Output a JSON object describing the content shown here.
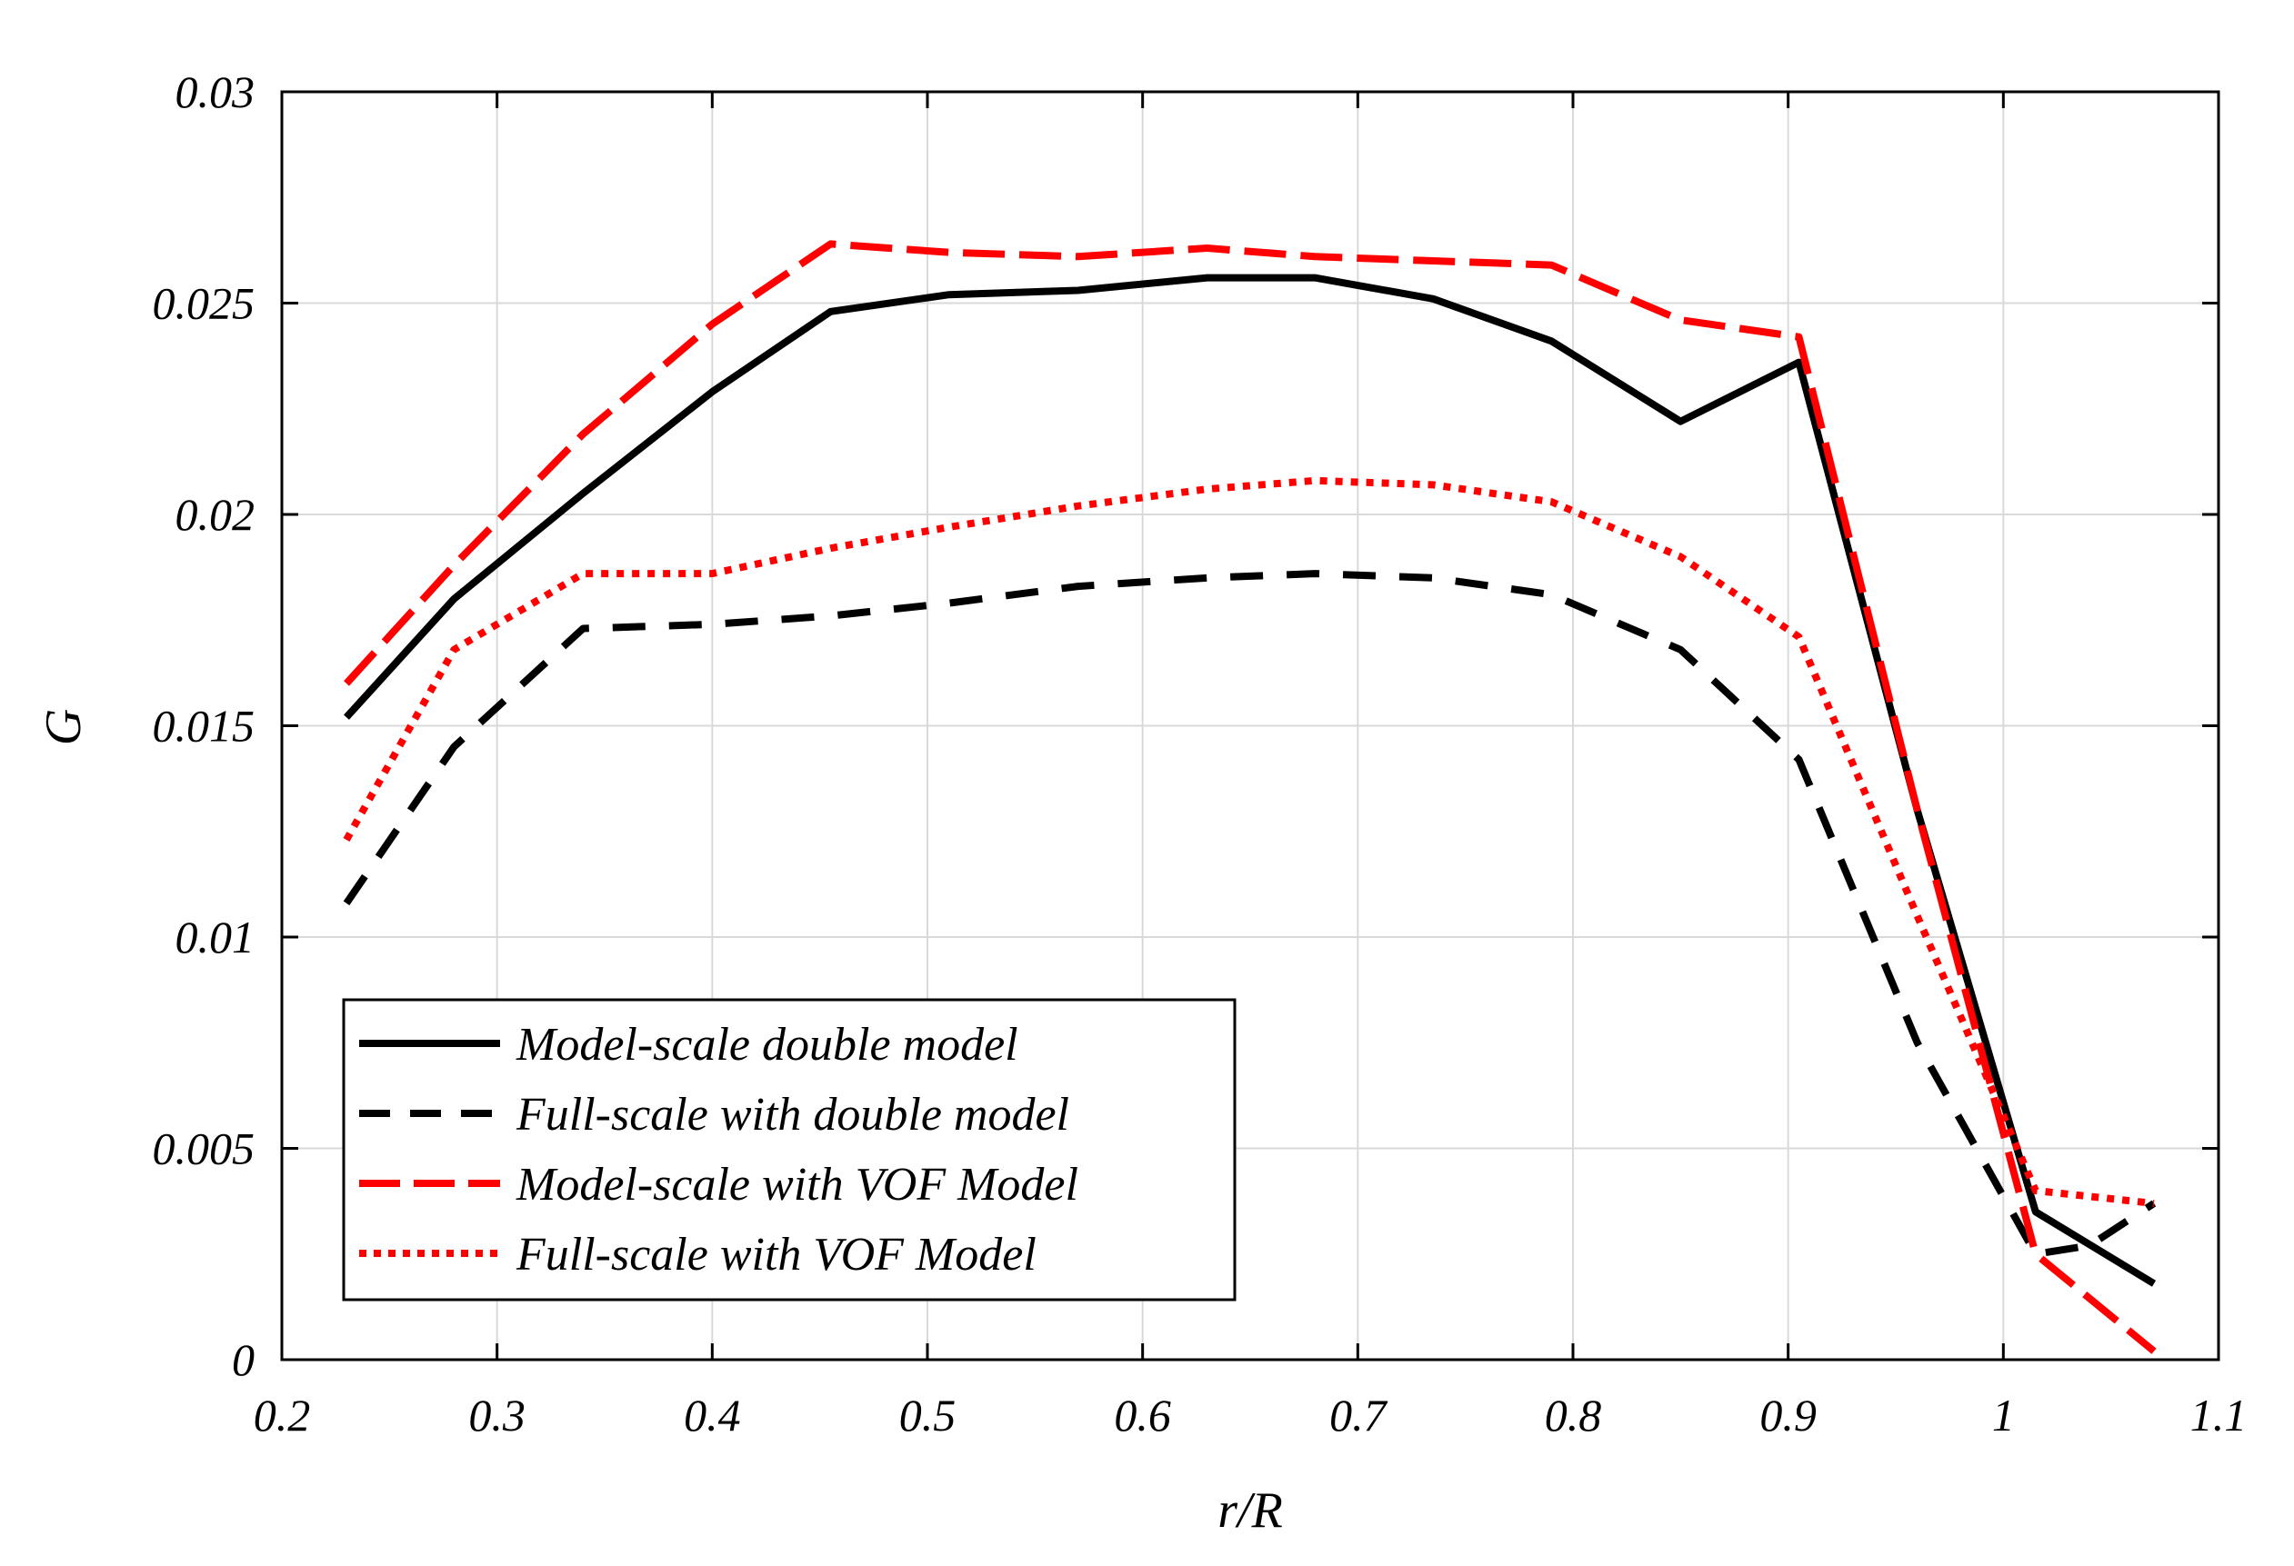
{
  "chart_data": {
    "type": "line",
    "title": "",
    "xlabel": "r/R",
    "ylabel": "G",
    "xlim": [
      0.2,
      1.1
    ],
    "ylim": [
      0,
      0.03
    ],
    "grid": true,
    "x_ticks": [
      0.2,
      0.3,
      0.4,
      0.5,
      0.6,
      0.7,
      0.8,
      0.9,
      1,
      1.1
    ],
    "x_tick_labels": [
      "0.2",
      "0.3",
      "0.4",
      "0.5",
      "0.6",
      "0.7",
      "0.8",
      "0.9",
      "1",
      "1.1"
    ],
    "y_ticks": [
      0,
      0.005,
      0.01,
      0.015,
      0.02,
      0.025,
      0.03
    ],
    "y_tick_labels": [
      "0",
      "0.005",
      "0.01",
      "0.015",
      "0.02",
      "0.025",
      "0.03"
    ],
    "legend_position": "bottom-left",
    "series": [
      {
        "name": "Model-scale double model",
        "color": "#000000",
        "style": "solid",
        "x": [
          0.23,
          0.28,
          0.34,
          0.4,
          0.455,
          0.51,
          0.57,
          0.63,
          0.68,
          0.735,
          0.79,
          0.85,
          0.905,
          0.96,
          1.015,
          1.07
        ],
        "y": [
          0.0152,
          0.018,
          0.0205,
          0.0229,
          0.0248,
          0.0252,
          0.0253,
          0.0256,
          0.0256,
          0.0251,
          0.0241,
          0.0222,
          0.0236,
          0.013,
          0.0035,
          0.0018
        ]
      },
      {
        "name": "Full-scale with double model",
        "color": "#000000",
        "style": "dashed",
        "x": [
          0.23,
          0.28,
          0.34,
          0.4,
          0.455,
          0.51,
          0.57,
          0.63,
          0.68,
          0.735,
          0.79,
          0.85,
          0.905,
          0.96,
          1.015,
          1.04,
          1.07
        ],
        "y": [
          0.0108,
          0.0145,
          0.0173,
          0.0174,
          0.0176,
          0.0179,
          0.0183,
          0.0185,
          0.0186,
          0.0185,
          0.0181,
          0.0168,
          0.0142,
          0.0075,
          0.0025,
          0.0027,
          0.0037
        ]
      },
      {
        "name": "Model-scale with VOF Model",
        "color": "#ff0000",
        "style": "long-dashed",
        "x": [
          0.23,
          0.28,
          0.34,
          0.4,
          0.455,
          0.51,
          0.57,
          0.63,
          0.68,
          0.735,
          0.79,
          0.85,
          0.905,
          0.96,
          1.015,
          1.07
        ],
        "y": [
          0.016,
          0.0188,
          0.0219,
          0.0245,
          0.0264,
          0.0262,
          0.0261,
          0.0263,
          0.0261,
          0.026,
          0.0259,
          0.0246,
          0.0242,
          0.013,
          0.0025,
          0.0002
        ]
      },
      {
        "name": "Full-scale with VOF Model",
        "color": "#ff0000",
        "style": "dotted",
        "x": [
          0.23,
          0.28,
          0.34,
          0.4,
          0.455,
          0.51,
          0.57,
          0.63,
          0.68,
          0.735,
          0.79,
          0.85,
          0.905,
          0.96,
          1.015,
          1.07
        ],
        "y": [
          0.0123,
          0.0168,
          0.0186,
          0.0186,
          0.0192,
          0.0197,
          0.0202,
          0.0206,
          0.0208,
          0.0207,
          0.0203,
          0.019,
          0.0171,
          0.0105,
          0.004,
          0.0037
        ]
      }
    ]
  }
}
